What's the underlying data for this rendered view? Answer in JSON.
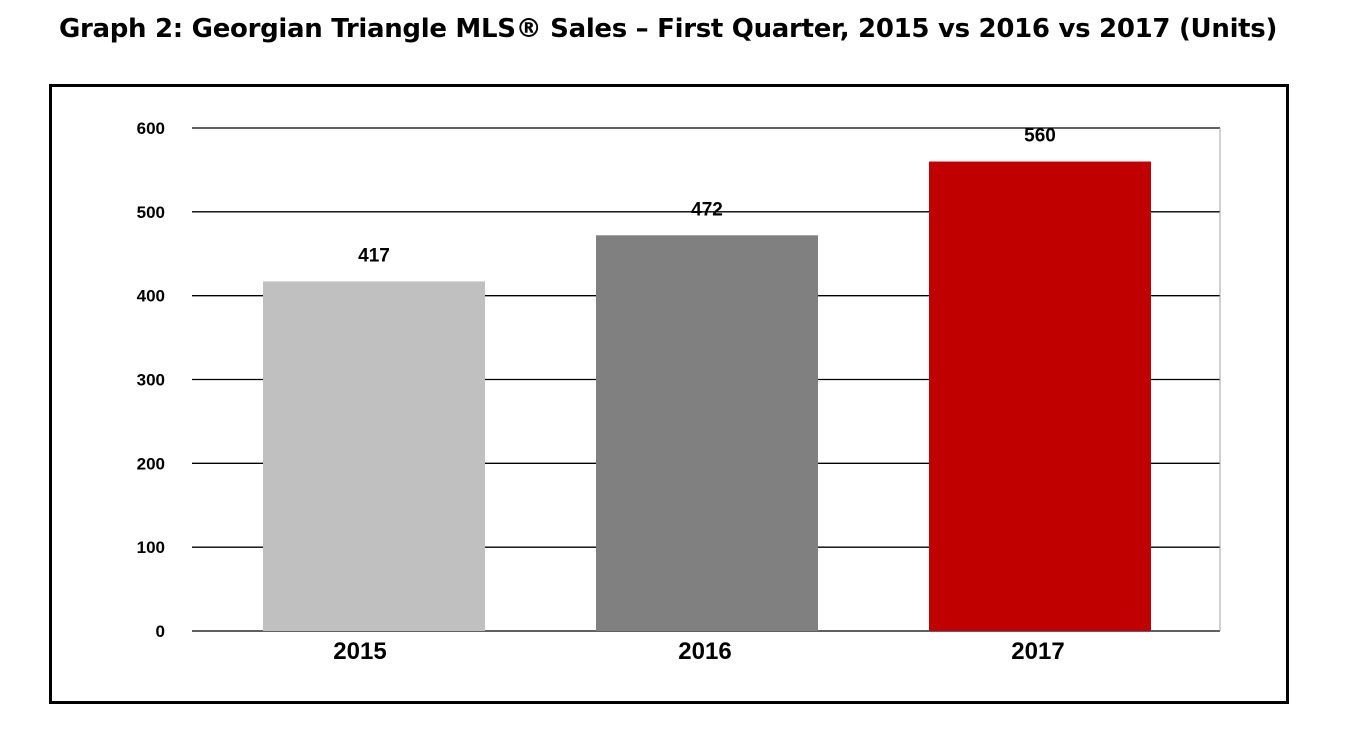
{
  "header": {
    "title": "Graph 2: Georgian Triangle MLS® Sales – First Quarter, 2015 vs 2016 vs 2017 (Units)"
  },
  "chart_data": {
    "type": "bar",
    "title": "Graph 2: Georgian Triangle MLS® Sales – First Quarter, 2015 vs 2016 vs 2017 (Units)",
    "categories": [
      "2015",
      "2016",
      "2017"
    ],
    "values": [
      417,
      472,
      560
    ],
    "value_labels": [
      "417",
      "472",
      "560"
    ],
    "colors": [
      "#c0c0c0",
      "#808080",
      "#c00000"
    ],
    "xlabel": "",
    "ylabel": "",
    "ylim": [
      0,
      600
    ],
    "yticks": [
      0,
      100,
      200,
      300,
      400,
      500,
      600
    ],
    "ytick_labels": [
      "0",
      "100",
      "200",
      "300",
      "400",
      "500",
      "600"
    ],
    "grid": true,
    "legend": "none"
  }
}
